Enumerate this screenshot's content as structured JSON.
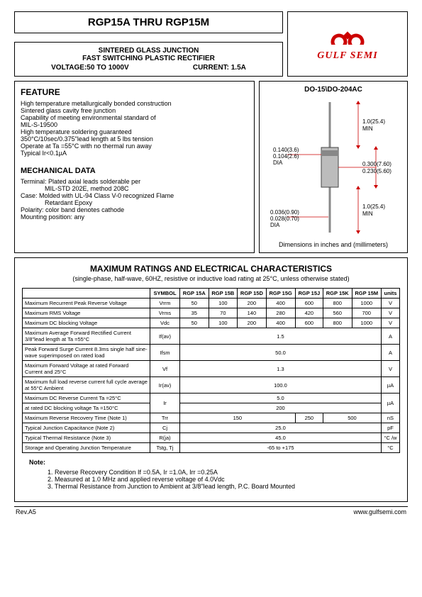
{
  "header": {
    "title": "RGP15A THRU RGP15M",
    "sub1": "SINTERED GLASS JUNCTION",
    "sub2": "FAST SWITCHING PLASTIC RECTIFIER",
    "voltage_label": "VOLTAGE:50 TO 1000V",
    "current_label": "CURRENT: 1.5A",
    "logo_text": "GULF SEMI"
  },
  "feature": {
    "title": "FEATURE",
    "lines": [
      "High temperature metallurgically bonded construction",
      "Sintered glass cavity free junction",
      "Capability of meeting environmental standard of",
      "MIL-S-19500",
      "High temperature soldering guaranteed",
      "350°C/10sec/0.375\"lead length at 5 lbs tension",
      "Operate at Ta =55°C with no thermal run away",
      "Typical Ir<0.1µA"
    ]
  },
  "mechanical": {
    "title": "MECHANICAL DATA",
    "l1": "Terminal: Plated axial leads solderable per",
    "l1b": "MIL-STD 202E, method 208C",
    "l2": "Case: Molded with UL-94 Class V-0 recognized Flame",
    "l2b": "Retardant Epoxy",
    "l3": "Polarity: color band denotes cathode",
    "l4": "Mounting position: any"
  },
  "package": {
    "title": "DO-15\\DO-204AC",
    "caption": "Dimensions in inches and (millimeters)",
    "dims": {
      "lead_dia1": "0.036(0.90)",
      "lead_dia2": "0.028(0.70)",
      "lead_dia_lbl": "DIA",
      "body_dia1": "0.140(3.6)",
      "body_dia2": "0.104(2.6)",
      "body_dia_lbl": "DIA",
      "body_len1": "0.300(7.60)",
      "body_len2": "0.230(5.60)",
      "lead_len": "1.0(25.4)",
      "lead_len_lbl": "MIN"
    },
    "colors": {
      "body": "#bcbcbc",
      "band": "#888",
      "lead": "#bbb",
      "stroke": "#444"
    }
  },
  "ratings": {
    "title": "MAXIMUM RATINGS AND ELECTRICAL CHARACTERISTICS",
    "subtitle": "(single-phase, half-wave, 60HZ, resistive or inductive load rating at 25°C, unless otherwise stated)",
    "columns": [
      "",
      "SYMBOL",
      "RGP 15A",
      "RGP 15B",
      "RGP 15D",
      "RGP 15G",
      "RGP 15J",
      "RGP 15K",
      "RGP 15M",
      "units"
    ],
    "rows": [
      {
        "label": "Maximum Recurrent Peak Reverse Voltage",
        "symbol": "Vrrm",
        "vals": [
          "50",
          "100",
          "200",
          "400",
          "600",
          "800",
          "1000"
        ],
        "unit": "V"
      },
      {
        "label": "Maximum RMS Voltage",
        "symbol": "Vrms",
        "vals": [
          "35",
          "70",
          "140",
          "280",
          "420",
          "560",
          "700"
        ],
        "unit": "V"
      },
      {
        "label": "Maximum DC blocking Voltage",
        "symbol": "Vdc",
        "vals": [
          "50",
          "100",
          "200",
          "400",
          "600",
          "800",
          "1000"
        ],
        "unit": "V"
      },
      {
        "label": "Maximum Average Forward Rectified Current 3/8\"lead length at Ta =55°C",
        "symbol": "If(av)",
        "span": "1.5",
        "unit": "A"
      },
      {
        "label": "Peak Forward Surge Current 8.3ms single half sine-wave superimposed on rated load",
        "symbol": "Ifsm",
        "span": "50.0",
        "unit": "A"
      },
      {
        "label": "Maximum Forward Voltage at rated Forward Current and 25°C",
        "symbol": "Vf",
        "span": "1.3",
        "unit": "V"
      },
      {
        "label": "Maximum full load reverse current full cycle average at 55°C Ambient",
        "symbol": "Ir(av)",
        "span": "100.0",
        "unit": "µA"
      },
      {
        "label": "Maximum DC Reverse Current   Ta =25°C",
        "symbol": "Ir",
        "span": "5.0",
        "unit": "µA",
        "rowspan2_label": "at rated DC blocking voltage   Ta =150°C",
        "span2": "200"
      },
      {
        "label": "Maximum Reverse Recovery Time   (Note 1)",
        "symbol": "Trr",
        "vals_merged": [
          {
            "v": "150",
            "c": 4
          },
          {
            "v": "250",
            "c": 1
          },
          {
            "v": "500",
            "c": 2
          }
        ],
        "unit": "nS"
      },
      {
        "label": "Typical Junction Capacitance   (Note 2)",
        "symbol": "Cj",
        "span": "25.0",
        "unit": "pF"
      },
      {
        "label": "Typical Thermal Resistance   (Note 3)",
        "symbol": "R(ja)",
        "span": "45.0",
        "unit": "°C /w"
      },
      {
        "label": "Storage and Operating Junction Temperature",
        "symbol": "Tstg, Tj",
        "span": "-65 to +175",
        "unit": "°C"
      }
    ]
  },
  "notes": {
    "title": "Note:",
    "items": [
      "1. Reverse Recovery Condition If =0.5A, Ir =1.0A, Irr =0.25A",
      "2. Measured at 1.0 MHz and applied reverse voltage of 4.0Vdc",
      "3. Thermal Resistance from Junction to Ambient at 3/8\"lead length, P.C. Board Mounted"
    ]
  },
  "footer": {
    "rev": "Rev.A5",
    "url": "www.gulfsemi.com"
  }
}
